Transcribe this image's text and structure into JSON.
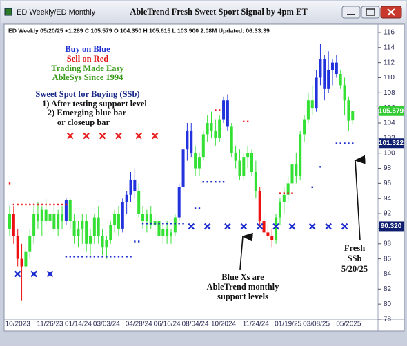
{
  "window": {
    "tabs": "ED Weekly/ED Monthly",
    "title": "AbleTrend Fresh Sweet Sport Signal by 4pm ET"
  },
  "chart_data": {
    "type": "ohlc",
    "header": "ED  Weekly 05/20/25 +1.289 C 105.579 O 104.350 H 105.615 L 103.900 2.08M Updated: 06:33:39",
    "categories": [
      null,
      null,
      "10/2023",
      null,
      null,
      null,
      null,
      null,
      null,
      null,
      "11/26/23",
      null,
      null,
      null,
      null,
      null,
      null,
      "01/14/24",
      null,
      null,
      null,
      null,
      null,
      null,
      "03/03/24",
      null,
      null,
      null,
      null,
      null,
      null,
      null,
      "04/28/24",
      null,
      null,
      null,
      null,
      null,
      null,
      "06/16/24",
      null,
      null,
      null,
      null,
      null,
      null,
      "08/04/24",
      null,
      null,
      null,
      null,
      null,
      null,
      "10/2024",
      null,
      null,
      null,
      null,
      null,
      null,
      null,
      "11/24/24",
      null,
      null,
      null,
      null,
      null,
      null,
      null,
      "01/19/25",
      null,
      null,
      null,
      null,
      null,
      null,
      "03/08/25",
      null,
      null,
      null,
      null,
      null,
      null,
      null,
      "05/2025",
      null
    ],
    "open": [
      90,
      92,
      89,
      86,
      85,
      87,
      89,
      92,
      91,
      92.5,
      91,
      92,
      90,
      92,
      91,
      93.8,
      91,
      89,
      90,
      91,
      88,
      89,
      91.5,
      89,
      87.5,
      88.5,
      90.5,
      92,
      90,
      93.5,
      94.5,
      96.5,
      95,
      92,
      91,
      92,
      90.5,
      91,
      89,
      90,
      89,
      89.5,
      91.5,
      95.5,
      100.5,
      103,
      100,
      98,
      99.5,
      102.5,
      104,
      103,
      102,
      104.5,
      107,
      103.5,
      100,
      99,
      97,
      99.5,
      100,
      97.5,
      95,
      91,
      89.5,
      89,
      88.5,
      91.5,
      93.5,
      94.5,
      96,
      98.5,
      97,
      102.5,
      104.5,
      107,
      106,
      110,
      112.5,
      108.5,
      111,
      112,
      110.5,
      109,
      107,
      104.35
    ],
    "high": [
      93,
      93,
      90,
      88,
      88,
      90,
      93,
      93.5,
      93,
      94,
      93.5,
      93,
      92.5,
      93,
      94,
      94,
      92,
      91,
      92,
      92,
      90,
      92,
      93,
      90,
      89,
      91,
      92.5,
      93,
      94,
      95,
      97.5,
      98,
      96,
      93,
      92.5,
      93,
      92,
      91.5,
      90.5,
      91,
      90,
      92,
      96,
      101,
      104,
      104,
      101,
      100,
      103,
      105,
      105.5,
      104.5,
      105,
      107.5,
      107.8,
      104,
      101,
      100.5,
      100,
      101,
      100.5,
      99,
      95.5,
      92,
      90.5,
      90,
      92,
      94,
      95.5,
      97,
      99.5,
      100,
      103,
      105,
      108,
      109,
      111,
      114.5,
      113,
      113.5,
      112.5,
      113,
      111,
      110,
      107.5,
      105.615
    ],
    "low": [
      89,
      88,
      85,
      80.5,
      84.5,
      86,
      88,
      90,
      89,
      90.5,
      89,
      89.5,
      89,
      90,
      90.5,
      90,
      88,
      87.5,
      88,
      87,
      86.5,
      88,
      88,
      86.5,
      86,
      88,
      89.5,
      89,
      89.5,
      92,
      93.5,
      94,
      91.5,
      90,
      89.5,
      90,
      89,
      88.5,
      88,
      88,
      88,
      89,
      91,
      95,
      99,
      99.5,
      97,
      97,
      99,
      101.5,
      102,
      101,
      101.5,
      104,
      103,
      99.5,
      98,
      96.5,
      96.5,
      98,
      97,
      94,
      90.5,
      89,
      88.5,
      87.5,
      88,
      90.5,
      92,
      93.5,
      95,
      96,
      96.5,
      101.5,
      104,
      105,
      105.5,
      109,
      107,
      108,
      109,
      110,
      108.5,
      105,
      103,
      103.9
    ],
    "close": [
      92,
      89,
      86,
      85,
      87,
      89,
      92,
      91,
      92.5,
      91,
      92,
      90,
      92,
      91,
      93.8,
      91,
      89,
      90,
      91,
      88,
      89,
      91.5,
      89,
      87.5,
      88.5,
      90.5,
      92,
      90,
      93.5,
      94.5,
      96.5,
      95,
      92,
      91,
      92,
      90.5,
      91,
      89,
      90,
      89,
      89.5,
      91.5,
      95.5,
      100.5,
      103,
      100,
      98,
      99.5,
      102.5,
      104,
      103,
      102,
      104.5,
      107,
      103.5,
      100,
      99,
      97,
      99.5,
      100,
      97.5,
      95,
      91,
      89.5,
      89,
      88.5,
      91.5,
      93.5,
      94.5,
      96,
      98.5,
      97,
      102.5,
      104.5,
      107,
      106,
      110,
      112.5,
      108.5,
      111,
      112,
      110.5,
      109,
      107,
      104.3,
      105.579
    ],
    "bar_colors": [
      "#35e035",
      "#ee1111",
      "#ee1111",
      "#ee1111",
      "#35e035",
      "#35e035",
      "#35e035",
      "#35e035",
      "#35e035",
      "#35e035",
      "#35e035",
      "#35e035",
      "#35e035",
      "#35e035",
      "#2233dd",
      "#35e035",
      "#35e035",
      "#35e035",
      "#35e035",
      "#35e035",
      "#35e035",
      "#35e035",
      "#35e035",
      "#35e035",
      "#35e035",
      "#35e035",
      "#35e035",
      "#35e035",
      "#2233dd",
      "#2233dd",
      "#2233dd",
      "#2233dd",
      "#35e035",
      "#35e035",
      "#35e035",
      "#35e035",
      "#35e035",
      "#35e035",
      "#35e035",
      "#35e035",
      "#35e035",
      "#35e035",
      "#2233dd",
      "#2233dd",
      "#2233dd",
      "#2233dd",
      "#35e035",
      "#35e035",
      "#35e035",
      "#35e035",
      "#35e035",
      "#35e035",
      "#35e035",
      "#2233dd",
      "#2233dd",
      "#35e035",
      "#35e035",
      "#35e035",
      "#35e035",
      "#35e035",
      "#35e035",
      "#35e035",
      "#ee1111",
      "#ee1111",
      "#ee1111",
      "#ee1111",
      "#35e035",
      "#35e035",
      "#35e035",
      "#35e035",
      "#35e035",
      "#35e035",
      "#35e035",
      "#35e035",
      "#35e035",
      "#35e035",
      "#2233dd",
      "#2233dd",
      "#2233dd",
      "#2233dd",
      "#2233dd",
      "#2233dd",
      "#35e035",
      "#35e035",
      "#35e035",
      "#35e035"
    ],
    "red_dots": {
      "color": "#e82020",
      "values": [
        96,
        93.2,
        93.2,
        93.2,
        93.2,
        93.2,
        93.2,
        93.2,
        93.2,
        93.2,
        93.2,
        93.2,
        93.2,
        93.2,
        93.2,
        null,
        null,
        null,
        null,
        null,
        null,
        null,
        null,
        null,
        null,
        null,
        null,
        null,
        null,
        null,
        null,
        null,
        null,
        null,
        null,
        null,
        null,
        null,
        null,
        null,
        null,
        null,
        null,
        null,
        null,
        null,
        null,
        null,
        null,
        null,
        null,
        105.7,
        105.7,
        null,
        null,
        null,
        null,
        null,
        104.2,
        104.2,
        null,
        null,
        null,
        null,
        null,
        null,
        null,
        94.7,
        94.7,
        94.7,
        94.7,
        null,
        null,
        null,
        null,
        null,
        null,
        null,
        null,
        null,
        null,
        null,
        null,
        null,
        null,
        null
      ]
    },
    "red_x": {
      "color": "#e82020",
      "values": [
        null,
        null,
        null,
        null,
        null,
        null,
        null,
        null,
        null,
        null,
        null,
        null,
        null,
        null,
        null,
        102.3,
        null,
        null,
        null,
        102.3,
        null,
        null,
        null,
        102.3,
        null,
        null,
        null,
        102.3,
        null,
        null,
        null,
        null,
        102.3,
        null,
        null,
        null,
        102.3,
        null,
        null,
        null,
        null,
        null,
        null,
        null,
        null,
        null,
        null,
        null,
        null,
        null,
        null,
        null,
        null,
        null,
        null,
        null,
        null,
        null,
        null,
        null,
        null,
        null,
        null,
        null,
        null,
        null,
        null,
        null,
        null,
        null,
        null,
        null,
        null,
        null,
        null,
        null,
        null,
        null,
        null,
        null,
        null,
        null,
        null,
        null,
        null,
        null
      ]
    },
    "blue_dots": {
      "color": "#1a2bd0",
      "values": [
        null,
        null,
        null,
        null,
        null,
        null,
        null,
        null,
        null,
        null,
        null,
        null,
        null,
        null,
        86.3,
        86.3,
        86.3,
        86.3,
        86.3,
        86.3,
        86.3,
        86.3,
        86.3,
        86.3,
        86.3,
        86.3,
        86.3,
        86.3,
        86.3,
        86.3,
        86.3,
        88.3,
        88.3,
        90.7,
        90.7,
        90.7,
        90.7,
        90.7,
        90.7,
        90.7,
        90.7,
        90.7,
        90.7,
        90.7,
        null,
        null,
        92.7,
        92.7,
        96.2,
        96.2,
        96.2,
        96.2,
        96.2,
        96.2,
        null,
        null,
        null,
        null,
        null,
        null,
        null,
        null,
        null,
        null,
        null,
        null,
        null,
        null,
        null,
        null,
        null,
        null,
        null,
        null,
        null,
        95.5,
        null,
        98.2,
        null,
        null,
        null,
        101.3,
        101.3,
        101.3,
        101.3,
        101.3
      ]
    },
    "blue_x": {
      "color": "#1a2bd0",
      "values": [
        null,
        null,
        84,
        null,
        null,
        null,
        84,
        null,
        null,
        null,
        84,
        null,
        null,
        null,
        null,
        null,
        null,
        null,
        null,
        null,
        null,
        null,
        null,
        null,
        null,
        null,
        null,
        null,
        null,
        null,
        null,
        null,
        null,
        null,
        null,
        null,
        null,
        null,
        null,
        null,
        null,
        null,
        null,
        null,
        null,
        90.3,
        null,
        null,
        null,
        90.3,
        null,
        null,
        null,
        null,
        90.3,
        null,
        null,
        null,
        90.3,
        null,
        null,
        null,
        90.3,
        null,
        null,
        null,
        90.3,
        null,
        null,
        null,
        90.3,
        null,
        null,
        null,
        null,
        90.3,
        null,
        null,
        null,
        90.3,
        null,
        null,
        null,
        90.3,
        null,
        null
      ]
    },
    "price_tags": [
      {
        "value": 105.579,
        "color": "#33cc33"
      },
      {
        "value": 101.322,
        "color": "#0d1f6e"
      },
      {
        "value": 90.32,
        "label": "90.320",
        "color": "#0d1f6e"
      }
    ],
    "ylim": [
      78,
      117
    ],
    "yticks": [
      78,
      80,
      82,
      84,
      86,
      88,
      90,
      92,
      94,
      96,
      98,
      100,
      102,
      104,
      106,
      108,
      110,
      112,
      114,
      116
    ],
    "annotations": [
      {
        "text": "Buy on Blue",
        "color": "#1f2fd0"
      },
      {
        "text": "Sell on Red",
        "color": "#e01515"
      },
      {
        "text": "Trading Made Easy",
        "color": "#3a9b1a"
      },
      {
        "text": "AbleSys Since 1994",
        "color": "#3a9b1a"
      },
      {
        "text": "Sweet Spot for Buying (SSb)",
        "color": "#1a2a8a"
      },
      {
        "text": "1) After testing support level",
        "color": "#111111"
      },
      {
        "text": "2) Emerging blue bar",
        "color": "#111111"
      },
      {
        "text": "or closeup bar",
        "color": "#111111"
      },
      {
        "text": "Blue Xs are",
        "color": "#111111"
      },
      {
        "text": "AbleTrend monthly",
        "color": "#111111"
      },
      {
        "text": "support levels",
        "color": "#111111"
      },
      {
        "text": "Fresh",
        "color": "#111111"
      },
      {
        "text": "SSb",
        "color": "#111111"
      },
      {
        "text": "5/20/25",
        "color": "#111111"
      }
    ]
  }
}
